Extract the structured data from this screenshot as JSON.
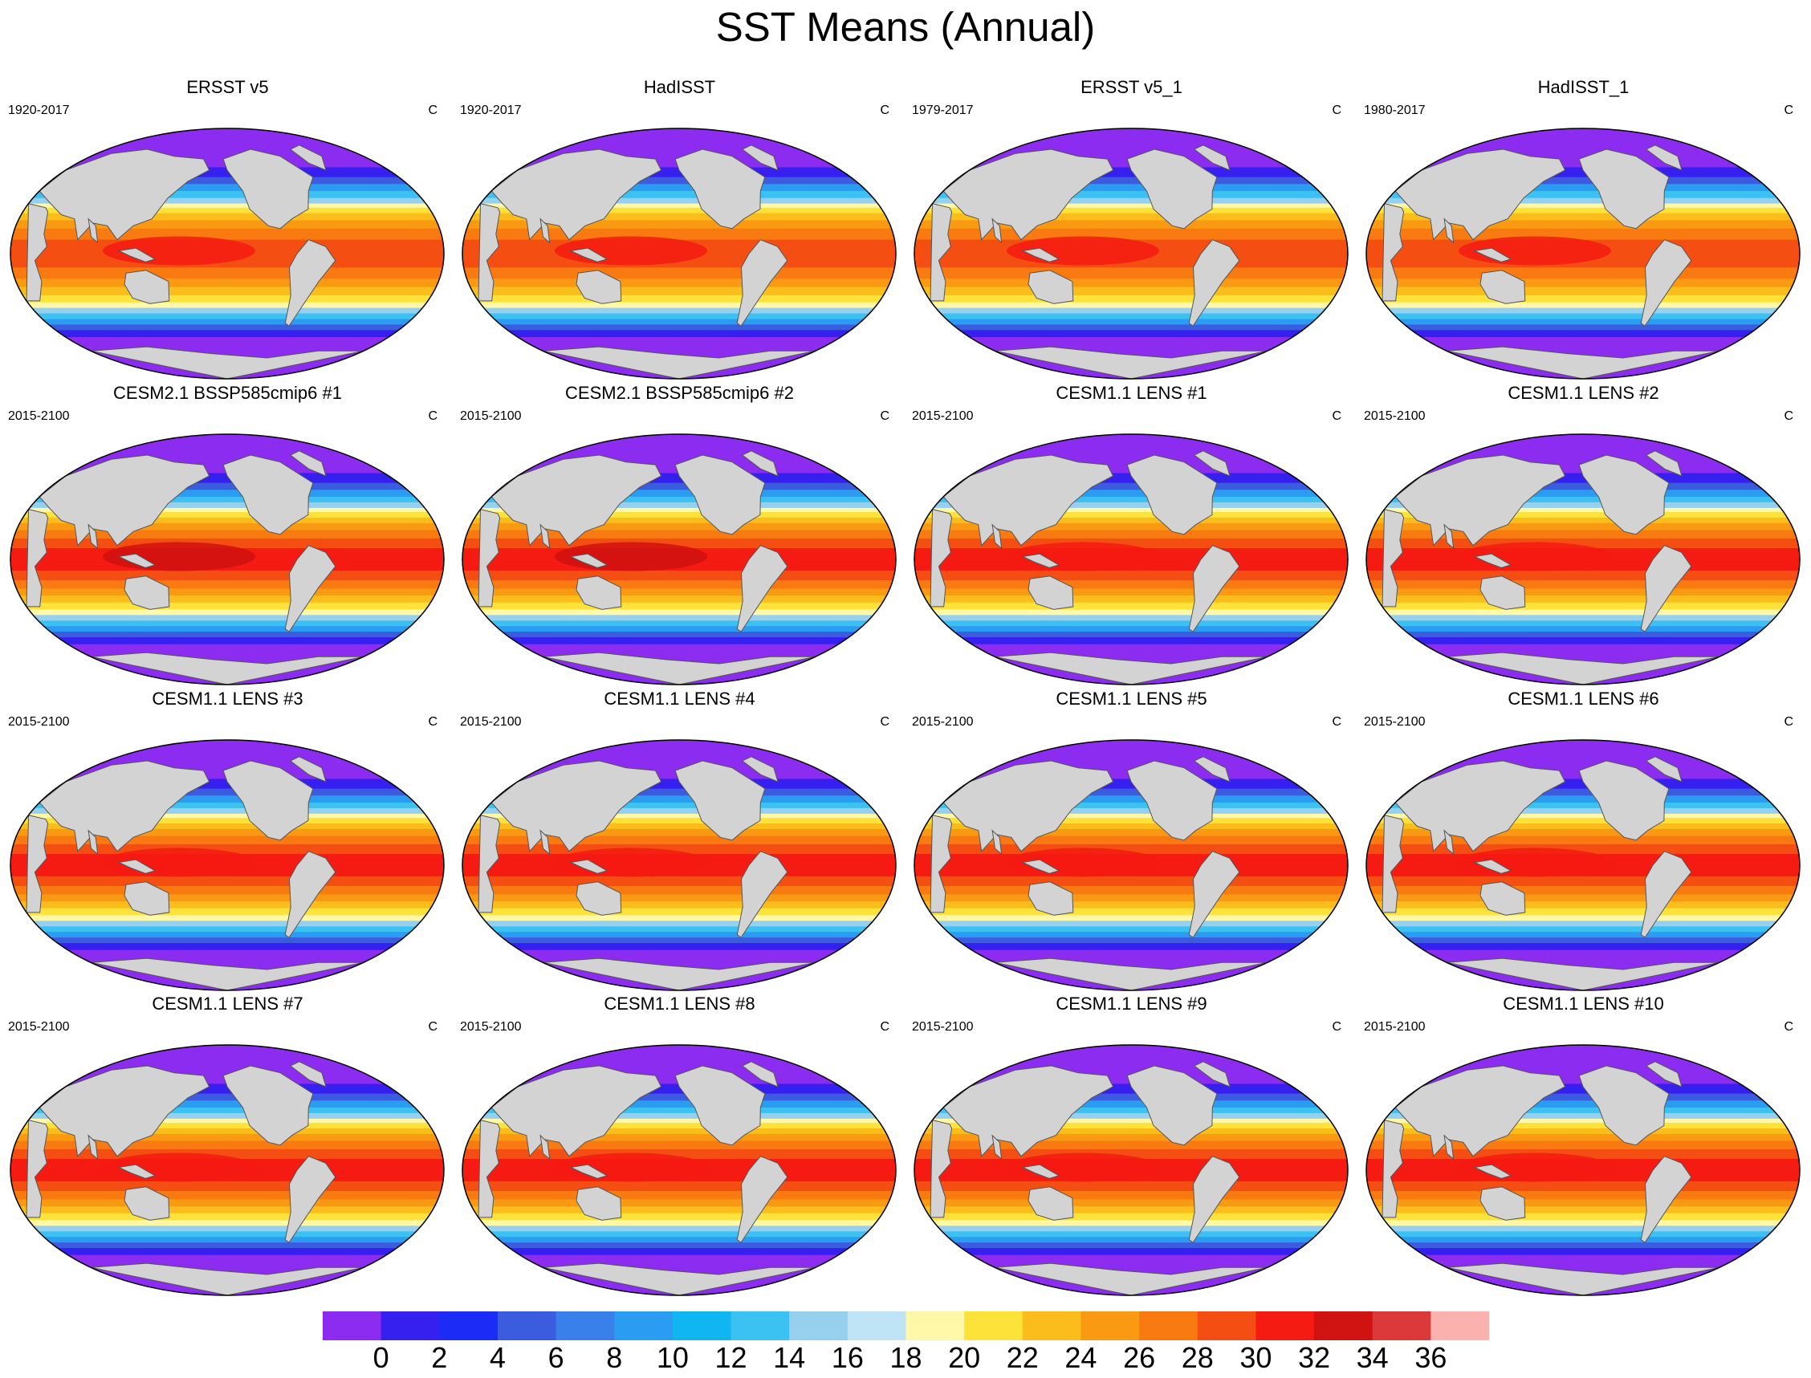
{
  "title": "SST Means (Annual)",
  "chart_data": {
    "type": "heatmap",
    "title": "SST Means (Annual)",
    "units": "C",
    "colorbar": {
      "ticks": [
        "0",
        "2",
        "4",
        "6",
        "8",
        "10",
        "12",
        "14",
        "16",
        "18",
        "20",
        "22",
        "24",
        "26",
        "28",
        "30",
        "32",
        "34",
        "36"
      ],
      "colors": [
        "#8b2cf0",
        "#3520f0",
        "#1a2cf5",
        "#3c5ce0",
        "#3a80ea",
        "#2a9cf2",
        "#10b6f2",
        "#3cc2f2",
        "#96d0ee",
        "#bfe4f6",
        "#fff8a8",
        "#fde23a",
        "#fbbd1c",
        "#fa9a12",
        "#f87a10",
        "#f54e12",
        "#f51a12",
        "#d01210",
        "#dc3a3a",
        "#fbb2ae"
      ]
    },
    "panels": [
      {
        "title": "ERSST v5",
        "period": "1920-2017",
        "units": "C"
      },
      {
        "title": "HadISST",
        "period": "1920-2017",
        "units": "C"
      },
      {
        "title": "ERSST v5_1",
        "period": "1979-2017",
        "units": "C"
      },
      {
        "title": "HadISST_1",
        "period": "1980-2017",
        "units": "C"
      },
      {
        "title": "CESM2.1 BSSP585cmip6 #1",
        "period": "2015-2100",
        "units": "C"
      },
      {
        "title": "CESM2.1 BSSP585cmip6 #2",
        "period": "2015-2100",
        "units": "C"
      },
      {
        "title": "CESM1.1 LENS #1",
        "period": "2015-2100",
        "units": "C"
      },
      {
        "title": "CESM1.1 LENS #2",
        "period": "2015-2100",
        "units": "C"
      },
      {
        "title": "CESM1.1 LENS #3",
        "period": "2015-2100",
        "units": "C"
      },
      {
        "title": "CESM1.1 LENS #4",
        "period": "2015-2100",
        "units": "C"
      },
      {
        "title": "CESM1.1 LENS #5",
        "period": "2015-2100",
        "units": "C"
      },
      {
        "title": "CESM1.1 LENS #6",
        "period": "2015-2100",
        "units": "C"
      },
      {
        "title": "CESM1.1 LENS #7",
        "period": "2015-2100",
        "units": "C"
      },
      {
        "title": "CESM1.1 LENS #8",
        "period": "2015-2100",
        "units": "C"
      },
      {
        "title": "CESM1.1 LENS #9",
        "period": "2015-2100",
        "units": "C"
      },
      {
        "title": "CESM1.1 LENS #10",
        "period": "2015-2100",
        "units": "C"
      }
    ]
  }
}
